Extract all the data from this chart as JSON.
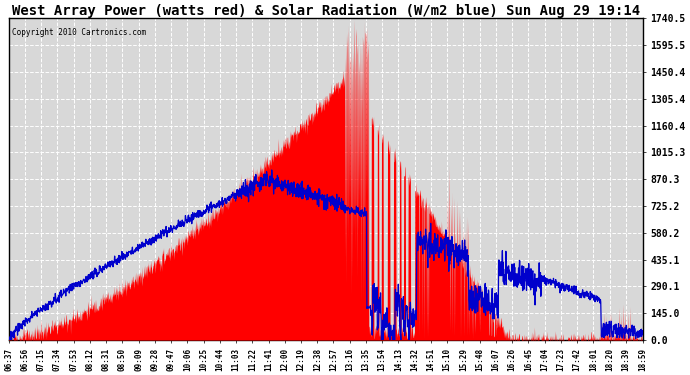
{
  "title": "West Array Power (watts red) & Solar Radiation (W/m2 blue) Sun Aug 29 19:14",
  "copyright": "Copyright 2010 Cartronics.com",
  "yticks": [
    0.0,
    145.0,
    290.1,
    435.1,
    580.2,
    725.2,
    870.3,
    1015.3,
    1160.4,
    1305.4,
    1450.4,
    1595.5,
    1740.5
  ],
  "xtick_labels": [
    "06:37",
    "06:56",
    "07:15",
    "07:34",
    "07:53",
    "08:12",
    "08:31",
    "08:50",
    "09:09",
    "09:28",
    "09:47",
    "10:06",
    "10:25",
    "10:44",
    "11:03",
    "11:22",
    "11:41",
    "12:00",
    "12:19",
    "12:38",
    "12:57",
    "13:16",
    "13:35",
    "13:54",
    "14:13",
    "14:32",
    "14:51",
    "15:10",
    "15:29",
    "15:48",
    "16:07",
    "16:26",
    "16:45",
    "17:04",
    "17:23",
    "17:42",
    "18:01",
    "18:20",
    "18:39",
    "18:59"
  ],
  "bg_color": "#ffffff",
  "plot_bg": "#d8d8d8",
  "grid_color": "#ffffff",
  "red_color": "#ff0000",
  "blue_color": "#0000cc",
  "title_fontsize": 10,
  "ymax": 1740.5,
  "ymin": 0.0
}
